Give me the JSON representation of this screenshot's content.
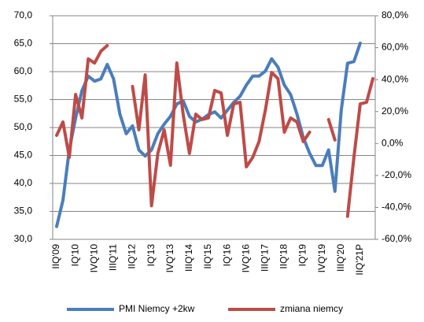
{
  "chart_data": {
    "type": "line",
    "categories": [
      "IIQ'09",
      null,
      null,
      "IQ'10",
      null,
      null,
      "IVQ'10",
      null,
      null,
      "IIIQ'11",
      null,
      null,
      "IIQ'12",
      null,
      null,
      "IQ'13",
      null,
      null,
      "IVQ'13",
      null,
      null,
      "IIIQ'14",
      null,
      null,
      "IIQ'15",
      null,
      null,
      "IQ'16",
      null,
      null,
      "IVQ'16",
      null,
      null,
      "IIIQ'17",
      null,
      null,
      "IIQ'18",
      null,
      null,
      "IQ'19",
      null,
      null,
      "IVQ'19",
      null,
      null,
      "IIIQ'20",
      null,
      null,
      "IIQ'21P",
      null,
      null
    ],
    "series": [
      {
        "name": "PMI Niemcy +2kw",
        "color": "#4a7ebb",
        "values": [
          32.3,
          37,
          46,
          51.7,
          56.6,
          59.2,
          58.3,
          58.7,
          61.3,
          58.7,
          52.4,
          48.9,
          50.3,
          46,
          44.9,
          46,
          48.9,
          50.6,
          52,
          54.2,
          54.8,
          52,
          51,
          51.5,
          52.3,
          52.8,
          51.7,
          53.1,
          54.5,
          55.6,
          57.6,
          59.2,
          59.2,
          60.1,
          62.3,
          60.8,
          57.6,
          55.9,
          52.4,
          48.2,
          45.4,
          43.2,
          43.2,
          46,
          38.6,
          53.1,
          61.5,
          61.8,
          65.1,
          null,
          null
        ]
      },
      {
        "name": "zmiana niemcy",
        "color": "#be4b48",
        "axis": "y2",
        "values": [
          5.1,
          13.5,
          -8.7,
          30.7,
          16,
          53,
          50.4,
          57.8,
          61.3,
          null,
          null,
          null,
          35.7,
          8.6,
          43,
          -39,
          -6.2,
          8.6,
          -13.6,
          50.4,
          18.4,
          -6.2,
          18.4,
          15,
          16,
          33.2,
          31.7,
          5.1,
          24.8,
          25.8,
          -14.6,
          -8.7,
          1.2,
          20.9,
          44.5,
          40.6,
          7.1,
          16,
          13.5,
          1.2,
          7.1,
          null,
          null,
          15,
          2.2,
          null,
          -45.6,
          -8.7,
          24.8,
          25.8,
          40.6
        ]
      }
    ],
    "ylim": [
      30,
      70
    ],
    "yticks": [
      {
        "value": 30,
        "label": "30,0"
      },
      {
        "value": 35,
        "label": "35,0"
      },
      {
        "value": 40,
        "label": "40,0"
      },
      {
        "value": 45,
        "label": "45,0"
      },
      {
        "value": 50,
        "label": "50,0"
      },
      {
        "value": 55,
        "label": "55,0"
      },
      {
        "value": 60,
        "label": "60,0"
      },
      {
        "value": 65,
        "label": "65,0"
      },
      {
        "value": 70,
        "label": "70,0"
      }
    ],
    "y2lim": [
      -60,
      80
    ],
    "y2ticks": [
      {
        "value": -60,
        "label": "-60,0%"
      },
      {
        "value": -40,
        "label": "-40,0%"
      },
      {
        "value": -20,
        "label": "-20,0%"
      },
      {
        "value": 0,
        "label": "0,0%"
      },
      {
        "value": 20,
        "label": "20,0%"
      },
      {
        "value": 40,
        "label": "40,0%"
      },
      {
        "value": 60,
        "label": "60,0%"
      },
      {
        "value": 80,
        "label": "80,0%"
      }
    ],
    "grid": true
  }
}
